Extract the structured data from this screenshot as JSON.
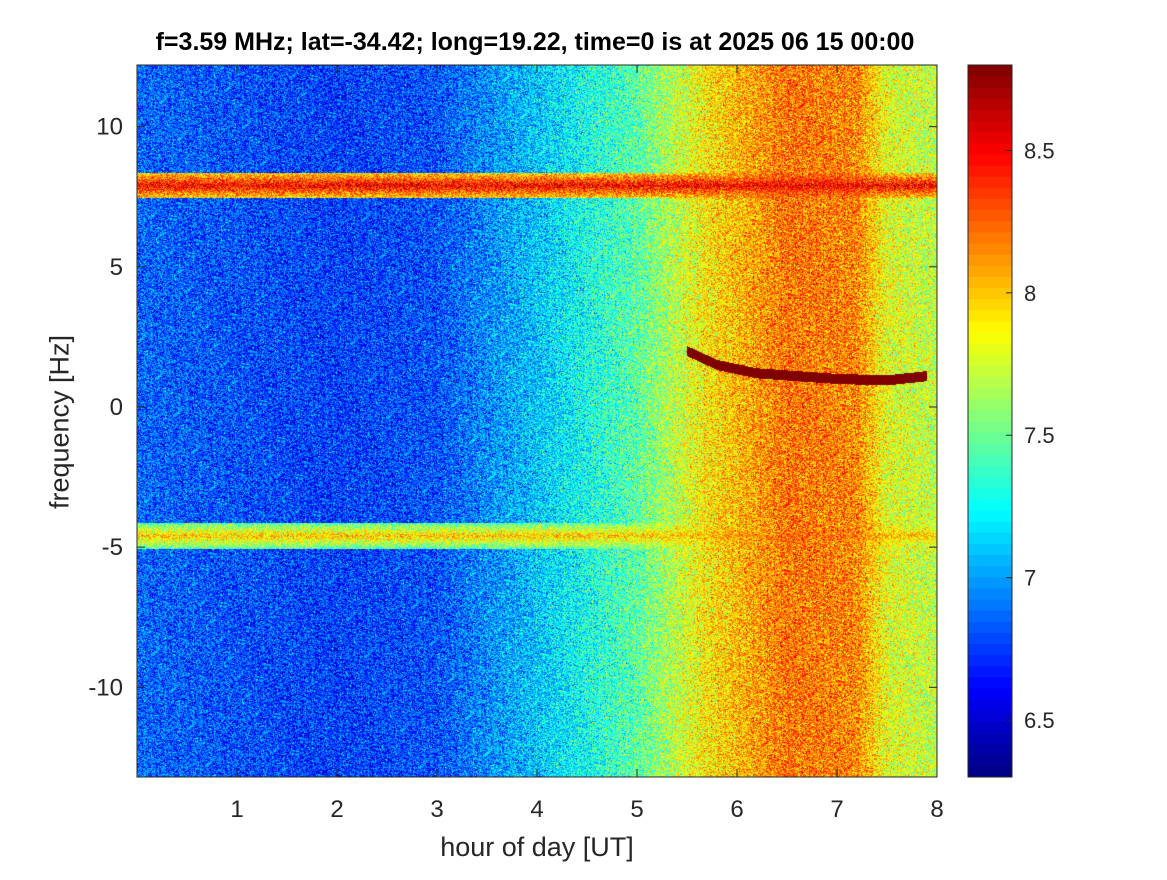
{
  "chart_data": {
    "type": "heatmap",
    "title": "f=3.59 MHz;  lat=-34.42; long=19.22, time=0 is at 2025 06 15 00:00",
    "xlabel": "hour of day [UT]",
    "ylabel": "frequency [Hz]",
    "xlim": [
      0,
      8
    ],
    "ylim": [
      -13.2,
      12.2
    ],
    "x_ticks": [
      1,
      2,
      3,
      4,
      5,
      6,
      7,
      8
    ],
    "y_ticks": [
      -10,
      -5,
      0,
      5,
      10
    ],
    "colorbar": {
      "colormap": "jet",
      "clim": [
        6.3,
        8.8
      ],
      "ticks": [
        6.5,
        7,
        7.5,
        8,
        8.5
      ]
    },
    "background_level_by_hour": [
      {
        "hour": 0,
        "value": 6.85
      },
      {
        "hour": 1,
        "value": 6.8
      },
      {
        "hour": 2,
        "value": 6.75
      },
      {
        "hour": 3,
        "value": 6.8
      },
      {
        "hour": 4,
        "value": 7.1
      },
      {
        "hour": 5,
        "value": 7.45
      },
      {
        "hour": 5.7,
        "value": 7.9
      },
      {
        "hour": 6.5,
        "value": 8.2
      },
      {
        "hour": 7.2,
        "value": 8.15
      },
      {
        "hour": 7.5,
        "value": 7.8
      },
      {
        "hour": 8,
        "value": 7.7
      }
    ],
    "features": [
      {
        "name": "band",
        "frequency": 7.9,
        "from_hour": 0,
        "to_hour": 8,
        "value": 8.5
      },
      {
        "name": "band",
        "frequency": -4.6,
        "from_hour": 0,
        "to_hour": 8,
        "value": 8.0
      },
      {
        "name": "trace",
        "value": 8.8,
        "points": [
          [
            5.5,
            2.0
          ],
          [
            5.8,
            1.5
          ],
          [
            6.2,
            1.2
          ],
          [
            6.6,
            1.1
          ],
          [
            7.0,
            1.0
          ],
          [
            7.5,
            0.95
          ],
          [
            7.9,
            1.1
          ]
        ]
      }
    ]
  }
}
